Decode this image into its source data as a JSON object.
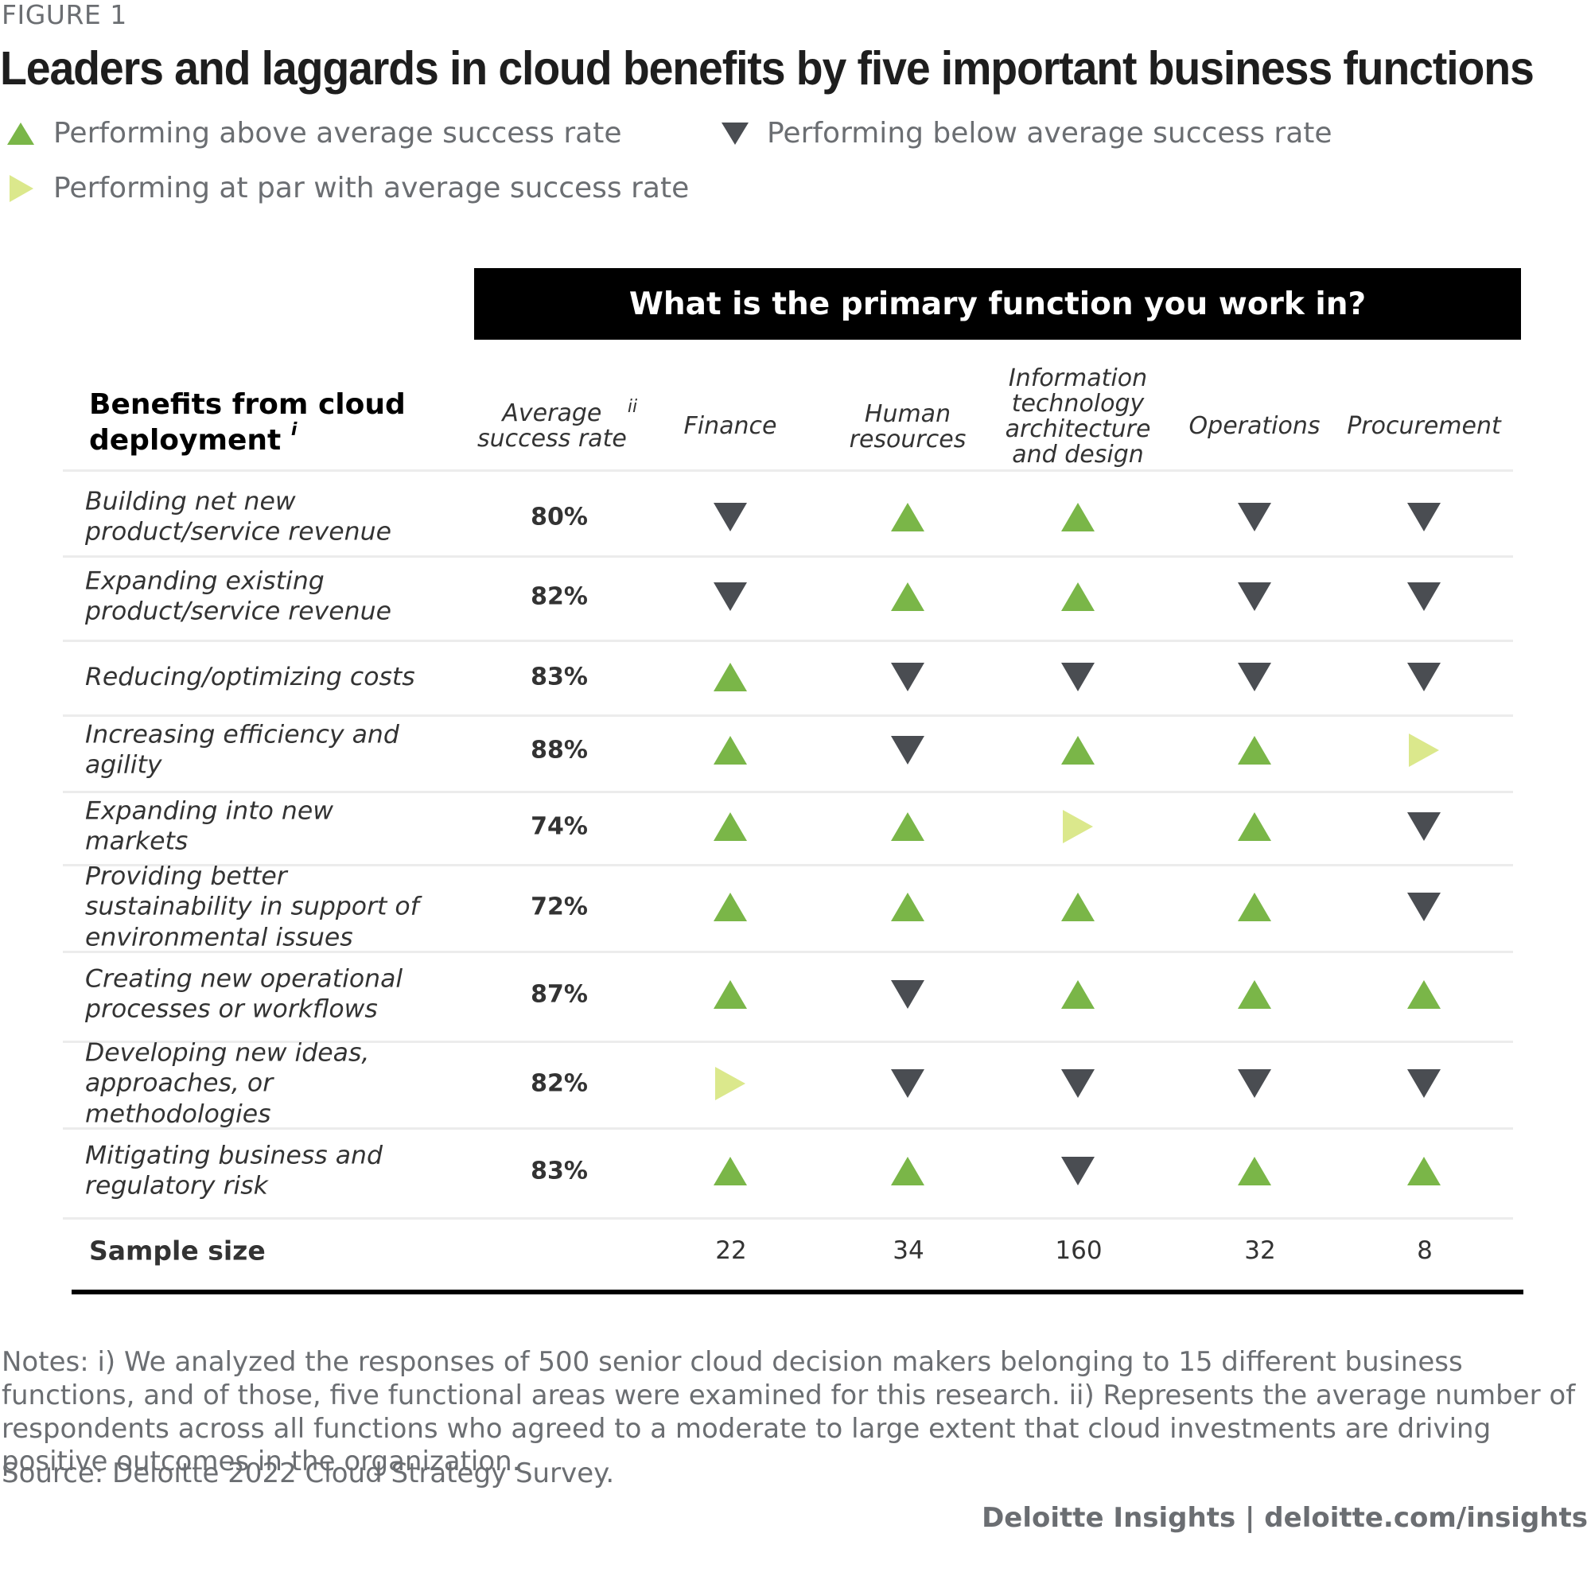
{
  "figure_label": "FIGURE 1",
  "title": "Leaders and laggards in cloud benefits by five important business functions",
  "legend": {
    "above": "Performing above average success rate",
    "below": "Performing below average success rate",
    "par": "Performing at par with average success rate"
  },
  "colors": {
    "above": "#7ab648",
    "below": "#4a4d52",
    "par": "#dbe88c"
  },
  "chart_data": {
    "type": "table",
    "banner": "What is the primary function you work in?",
    "row_header": "Benefits from cloud deployment",
    "row_header_sup": "i",
    "avg_header": "Average success rate",
    "avg_header_sup": "ii",
    "columns": [
      {
        "key": "finance",
        "label": "Finance"
      },
      {
        "key": "hr",
        "label": "Human resources"
      },
      {
        "key": "it",
        "label": "Information technology architecture and design"
      },
      {
        "key": "operations",
        "label": "Operations"
      },
      {
        "key": "procurement",
        "label": "Procurement"
      }
    ],
    "rows": [
      {
        "label": "Building net new product/service revenue",
        "avg": "80%",
        "values": [
          "below",
          "above",
          "above",
          "below",
          "below"
        ]
      },
      {
        "label": "Expanding existing product/service revenue",
        "avg": "82%",
        "values": [
          "below",
          "above",
          "above",
          "below",
          "below"
        ]
      },
      {
        "label": "Reducing/optimizing costs",
        "avg": "83%",
        "values": [
          "above",
          "below",
          "below",
          "below",
          "below"
        ]
      },
      {
        "label": "Increasing efficiency and agility",
        "avg": "88%",
        "values": [
          "above",
          "below",
          "above",
          "above",
          "par"
        ]
      },
      {
        "label": "Expanding into new markets",
        "avg": "74%",
        "values": [
          "above",
          "above",
          "par",
          "above",
          "below"
        ]
      },
      {
        "label": "Providing better sustainability in support of environmental issues",
        "avg": "72%",
        "values": [
          "above",
          "above",
          "above",
          "above",
          "below"
        ]
      },
      {
        "label": "Creating new operational processes or workflows",
        "avg": "87%",
        "values": [
          "above",
          "below",
          "above",
          "above",
          "above"
        ]
      },
      {
        "label": "Developing new ideas, approaches, or methodologies",
        "avg": "82%",
        "values": [
          "par",
          "below",
          "below",
          "below",
          "below"
        ]
      },
      {
        "label": "Mitigating business and regulatory risk",
        "avg": "83%",
        "values": [
          "above",
          "above",
          "below",
          "above",
          "above"
        ]
      }
    ],
    "sample_label": "Sample size",
    "sample_sizes": [
      22,
      34,
      160,
      32,
      8
    ]
  },
  "notes": "Notes: i) We analyzed the responses of 500 senior cloud decision makers belonging to 15 different business functions, and of those, five functional areas were examined for this research. ii) Represents the average number of respondents across all functions who agreed to a moderate to large extent that cloud investments are driving positive outcomes in the organization.",
  "source": "Source: Deloitte 2022 Cloud Strategy Survey.",
  "footer": "Deloitte Insights | deloitte.com/insights"
}
